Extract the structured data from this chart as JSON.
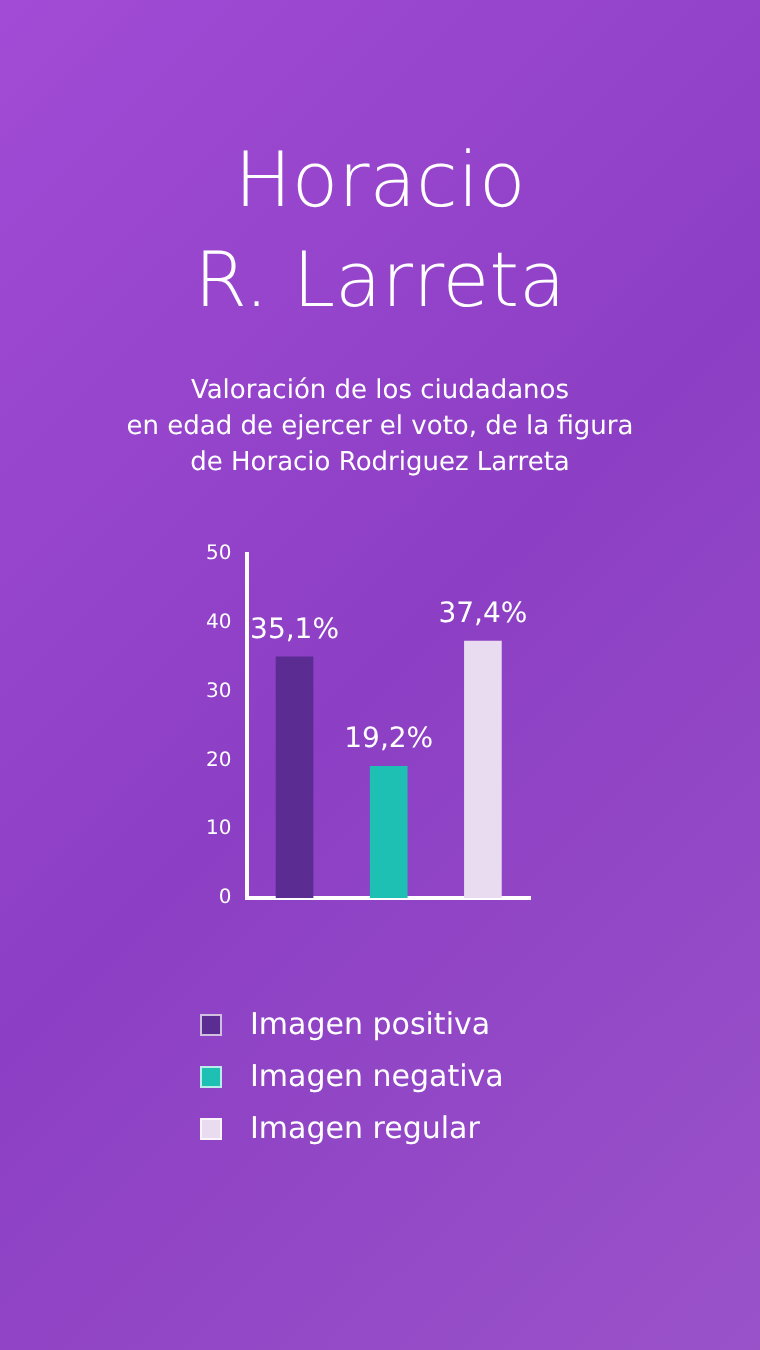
{
  "chart_data": {
    "type": "bar",
    "title": "Horacio\nR. Larreta",
    "subtitle": "Valoración de los ciudadanos\nen edad de ejercer el voto, de la figura\nde Horacio Rodriguez Larreta",
    "categories": [
      null
    ],
    "series": [
      {
        "name": "Imagen positiva",
        "color": "#5b2d92",
        "values": [
          35.1
        ],
        "value_labels": [
          "35,1%"
        ]
      },
      {
        "name": "Imagen negativa",
        "color": "#1fc0b4",
        "values": [
          19.2
        ],
        "value_labels": [
          "19,2%"
        ]
      },
      {
        "name": "Imagen regular",
        "color": "#eadcf0",
        "values": [
          37.4
        ],
        "value_labels": [
          "37,4%"
        ]
      }
    ],
    "ylim": [
      0,
      50
    ],
    "yticks": [
      0,
      10,
      20,
      30,
      40,
      50
    ],
    "grid": false,
    "legend": "bottom"
  }
}
